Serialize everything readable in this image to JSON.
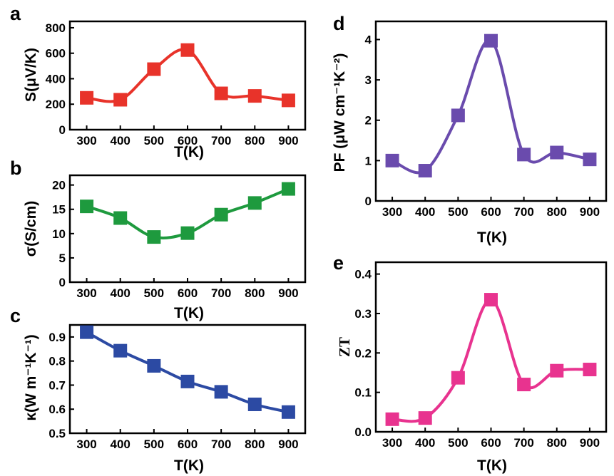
{
  "chart_data": [
    {
      "id": "a",
      "panel_label": "a",
      "type": "line",
      "marker": "square",
      "color": "#e8332a",
      "x": [
        300,
        400,
        500,
        600,
        700,
        800,
        900
      ],
      "y": [
        250,
        235,
        475,
        625,
        285,
        265,
        230
      ],
      "xlim": [
        250,
        950
      ],
      "ylim": [
        0,
        850
      ],
      "xticks": [
        300,
        400,
        500,
        600,
        700,
        800,
        900
      ],
      "yticks": [
        0,
        200,
        400,
        600,
        800
      ],
      "xlabel": "T(K)",
      "ylabel": "S(μV/K)",
      "grid": false,
      "legend": "none"
    },
    {
      "id": "b",
      "panel_label": "b",
      "type": "line",
      "marker": "square",
      "color": "#1e9a3e",
      "x": [
        300,
        400,
        500,
        600,
        700,
        800,
        900
      ],
      "y": [
        15.6,
        13.2,
        9.3,
        10.1,
        13.9,
        16.3,
        19.2
      ],
      "xlim": [
        250,
        950
      ],
      "ylim": [
        0,
        22
      ],
      "xticks": [
        300,
        400,
        500,
        600,
        700,
        800,
        900
      ],
      "yticks": [
        0,
        5,
        10,
        15,
        20
      ],
      "xlabel": "T(K)",
      "ylabel": "σ(S/cm)",
      "grid": false,
      "legend": "none"
    },
    {
      "id": "c",
      "panel_label": "c",
      "type": "line",
      "marker": "square",
      "color": "#2c4aa3",
      "x": [
        300,
        400,
        500,
        600,
        700,
        800,
        900
      ],
      "y": [
        0.92,
        0.843,
        0.78,
        0.715,
        0.672,
        0.62,
        0.588
      ],
      "xlim": [
        250,
        950
      ],
      "ylim": [
        0.5,
        0.95
      ],
      "xticks": [
        300,
        400,
        500,
        600,
        700,
        800,
        900
      ],
      "yticks": [
        0.5,
        0.6,
        0.7,
        0.8,
        0.9
      ],
      "xlabel": "T(K)",
      "ylabel": "κ(W m⁻¹K⁻¹)",
      "grid": false,
      "legend": "none"
    },
    {
      "id": "d",
      "panel_label": "d",
      "type": "line",
      "marker": "square",
      "color": "#6a4bad",
      "x": [
        300,
        400,
        500,
        600,
        700,
        800,
        900
      ],
      "y": [
        1.0,
        0.75,
        2.12,
        3.97,
        1.15,
        1.2,
        1.03
      ],
      "xlim": [
        250,
        950
      ],
      "ylim": [
        0,
        4.45
      ],
      "xticks": [
        300,
        400,
        500,
        600,
        700,
        800,
        900
      ],
      "yticks": [
        0,
        1,
        2,
        3,
        4
      ],
      "xlabel": "T(K)",
      "ylabel": "PF (μW cm⁻¹K⁻²)",
      "grid": false,
      "legend": "none"
    },
    {
      "id": "e",
      "panel_label": "e",
      "type": "line",
      "marker": "square",
      "color": "#e8338f",
      "x": [
        300,
        400,
        500,
        600,
        700,
        800,
        900
      ],
      "y": [
        0.032,
        0.035,
        0.137,
        0.335,
        0.12,
        0.155,
        0.158
      ],
      "xlim": [
        250,
        950
      ],
      "ylim": [
        0,
        0.43
      ],
      "xticks": [
        300,
        400,
        500,
        600,
        700,
        800,
        900
      ],
      "yticks": [
        0.0,
        0.1,
        0.2,
        0.3,
        0.4
      ],
      "xlabel": "T(K)",
      "ylabel": "ZT",
      "grid": false,
      "legend": "none"
    }
  ]
}
